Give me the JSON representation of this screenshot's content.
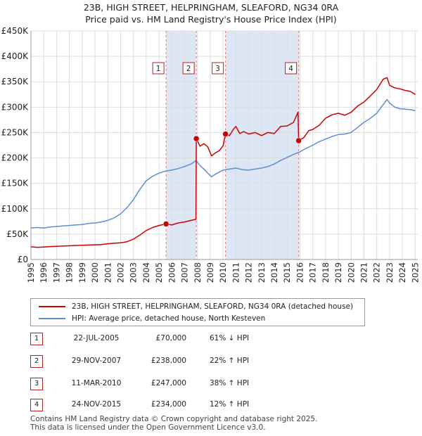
{
  "header": {
    "title_line1": "23B, HIGH STREET, HELPRINGHAM, SLEAFORD, NG34 0RA",
    "title_line2": "Price paid vs. HM Land Registry's House Price Index (HPI)"
  },
  "legend": {
    "series1_label": "23B, HIGH STREET, HELPRINGHAM, SLEAFORD, NG34 0RA (detached house)",
    "series2_label": "HPI: Average price, detached house, North Kesteven"
  },
  "colors": {
    "price_paid": "#cc0000",
    "hpi": "#5b8fd0",
    "shade": "#dde6f5",
    "grid": "#dddddd",
    "marker_border": "#b22222"
  },
  "sales": [
    {
      "num": "1",
      "date": "22-JUL-2005",
      "price": "£70,000",
      "hpi": "61% ↓ HPI"
    },
    {
      "num": "2",
      "date": "29-NOV-2007",
      "price": "£238,000",
      "hpi": "22% ↑ HPI"
    },
    {
      "num": "3",
      "date": "11-MAR-2010",
      "price": "£247,000",
      "hpi": "38% ↑ HPI"
    },
    {
      "num": "4",
      "date": "24-NOV-2015",
      "price": "£234,000",
      "hpi": "12% ↑ HPI"
    }
  ],
  "footer": {
    "line1": "Contains HM Land Registry data © Crown copyright and database right 2025.",
    "line2": "This data is licensed under the Open Government Licence v3.0."
  },
  "chart_data": {
    "type": "line",
    "title": "23B, HIGH STREET, HELPRINGHAM, SLEAFORD, NG34 0RA",
    "subtitle": "Price paid vs. HM Land Registry's House Price Index (HPI)",
    "xlabel": "",
    "ylabel": "",
    "xlim": [
      1995,
      2025.2
    ],
    "ylim": [
      0,
      450000
    ],
    "grid": true,
    "legend_position": "bottom",
    "x_ticks": [
      "1995",
      "1996",
      "1997",
      "1998",
      "1999",
      "2000",
      "2001",
      "2002",
      "2003",
      "2004",
      "2005",
      "2006",
      "2007",
      "2008",
      "2009",
      "2010",
      "2011",
      "2012",
      "2013",
      "2014",
      "2015",
      "2016",
      "2017",
      "2018",
      "2019",
      "2020",
      "2021",
      "2022",
      "2023",
      "2024",
      "2025"
    ],
    "y_ticks": [
      {
        "value": 0,
        "label": "£0"
      },
      {
        "value": 50000,
        "label": "£50K"
      },
      {
        "value": 100000,
        "label": "£100K"
      },
      {
        "value": 150000,
        "label": "£150K"
      },
      {
        "value": 200000,
        "label": "£200K"
      },
      {
        "value": 250000,
        "label": "£250K"
      },
      {
        "value": 300000,
        "label": "£300K"
      },
      {
        "value": 350000,
        "label": "£350K"
      },
      {
        "value": 400000,
        "label": "£400K"
      },
      {
        "value": 450000,
        "label": "£450K"
      }
    ],
    "shaded_ranges": [
      [
        2005.55,
        2007.91
      ],
      [
        2010.19,
        2015.9
      ]
    ],
    "sales": [
      {
        "label": "1",
        "x": 2005.55,
        "y": 70000
      },
      {
        "label": "2",
        "x": 2007.91,
        "y": 238000
      },
      {
        "label": "3",
        "x": 2010.19,
        "y": 247000
      },
      {
        "label": "4",
        "x": 2015.9,
        "y": 234000
      }
    ],
    "series": [
      {
        "name": "23B, HIGH STREET, HELPRINGHAM, SLEAFORD, NG34 0RA (detached house)",
        "x": [
          1995.0,
          1995.5,
          1996.0,
          1996.5,
          1997.0,
          1997.5,
          1998.0,
          1998.5,
          1999.0,
          1999.5,
          2000.0,
          2000.5,
          2001.0,
          2001.5,
          2002.0,
          2002.5,
          2003.0,
          2003.5,
          2004.0,
          2004.5,
          2005.0,
          2005.55,
          2006.0,
          2006.5,
          2007.0,
          2007.5,
          2007.88,
          2007.91,
          2008.2,
          2008.5,
          2008.8,
          2009.1,
          2009.4,
          2009.7,
          2010.0,
          2010.19,
          2010.5,
          2010.8,
          2011.0,
          2011.3,
          2011.6,
          2012.0,
          2012.5,
          2013.0,
          2013.5,
          2014.0,
          2014.5,
          2015.0,
          2015.5,
          2015.85,
          2015.9,
          2016.3,
          2016.7,
          2017.0,
          2017.5,
          2018.0,
          2018.5,
          2019.0,
          2019.5,
          2020.0,
          2020.5,
          2021.0,
          2021.5,
          2022.0,
          2022.5,
          2022.8,
          2023.0,
          2023.4,
          2023.8,
          2024.2,
          2024.6,
          2025.0
        ],
        "y": [
          25000,
          24000,
          24500,
          25500,
          26000,
          26500,
          27000,
          27500,
          28000,
          28500,
          29000,
          29500,
          31000,
          32000,
          33000,
          35000,
          40000,
          48000,
          57000,
          63000,
          67000,
          70000,
          68000,
          72000,
          74000,
          77000,
          79000,
          238000,
          223000,
          228000,
          222000,
          204000,
          210000,
          214000,
          224000,
          247000,
          244000,
          256000,
          262000,
          248000,
          252000,
          247000,
          250000,
          244000,
          250000,
          248000,
          262000,
          263000,
          270000,
          290000,
          234000,
          240000,
          254000,
          256000,
          264000,
          278000,
          285000,
          288000,
          284000,
          290000,
          302000,
          310000,
          322000,
          335000,
          355000,
          358000,
          343000,
          338000,
          336000,
          333000,
          331000,
          325000
        ]
      },
      {
        "name": "HPI: Average price, detached house, North Kesteven",
        "x": [
          1995.0,
          1995.5,
          1996.0,
          1996.5,
          1997.0,
          1997.5,
          1998.0,
          1998.5,
          1999.0,
          1999.5,
          2000.0,
          2000.5,
          2001.0,
          2001.5,
          2002.0,
          2002.5,
          2003.0,
          2003.5,
          2004.0,
          2004.5,
          2005.0,
          2005.5,
          2006.0,
          2006.5,
          2007.0,
          2007.5,
          2007.9,
          2008.2,
          2008.5,
          2008.8,
          2009.1,
          2009.4,
          2009.7,
          2010.0,
          2010.5,
          2011.0,
          2011.5,
          2012.0,
          2012.5,
          2013.0,
          2013.5,
          2014.0,
          2014.5,
          2015.0,
          2015.5,
          2016.0,
          2016.5,
          2017.0,
          2017.5,
          2018.0,
          2018.5,
          2019.0,
          2019.5,
          2020.0,
          2020.5,
          2021.0,
          2021.5,
          2022.0,
          2022.5,
          2022.8,
          2023.0,
          2023.4,
          2023.8,
          2024.2,
          2024.6,
          2025.0
        ],
        "y": [
          62000,
          63000,
          62000,
          64000,
          65000,
          66000,
          67000,
          68000,
          69000,
          71000,
          72000,
          74000,
          77000,
          82000,
          90000,
          102000,
          118000,
          138000,
          155000,
          164000,
          170000,
          174000,
          176000,
          179000,
          183000,
          188000,
          195000,
          185000,
          178000,
          170000,
          163000,
          168000,
          172000,
          176000,
          178000,
          180000,
          177000,
          176000,
          178000,
          180000,
          183000,
          188000,
          195000,
          201000,
          207000,
          212000,
          219000,
          225000,
          232000,
          237000,
          242000,
          246000,
          247000,
          250000,
          260000,
          270000,
          278000,
          288000,
          305000,
          315000,
          308000,
          300000,
          297000,
          296000,
          295000,
          293000
        ]
      }
    ]
  }
}
